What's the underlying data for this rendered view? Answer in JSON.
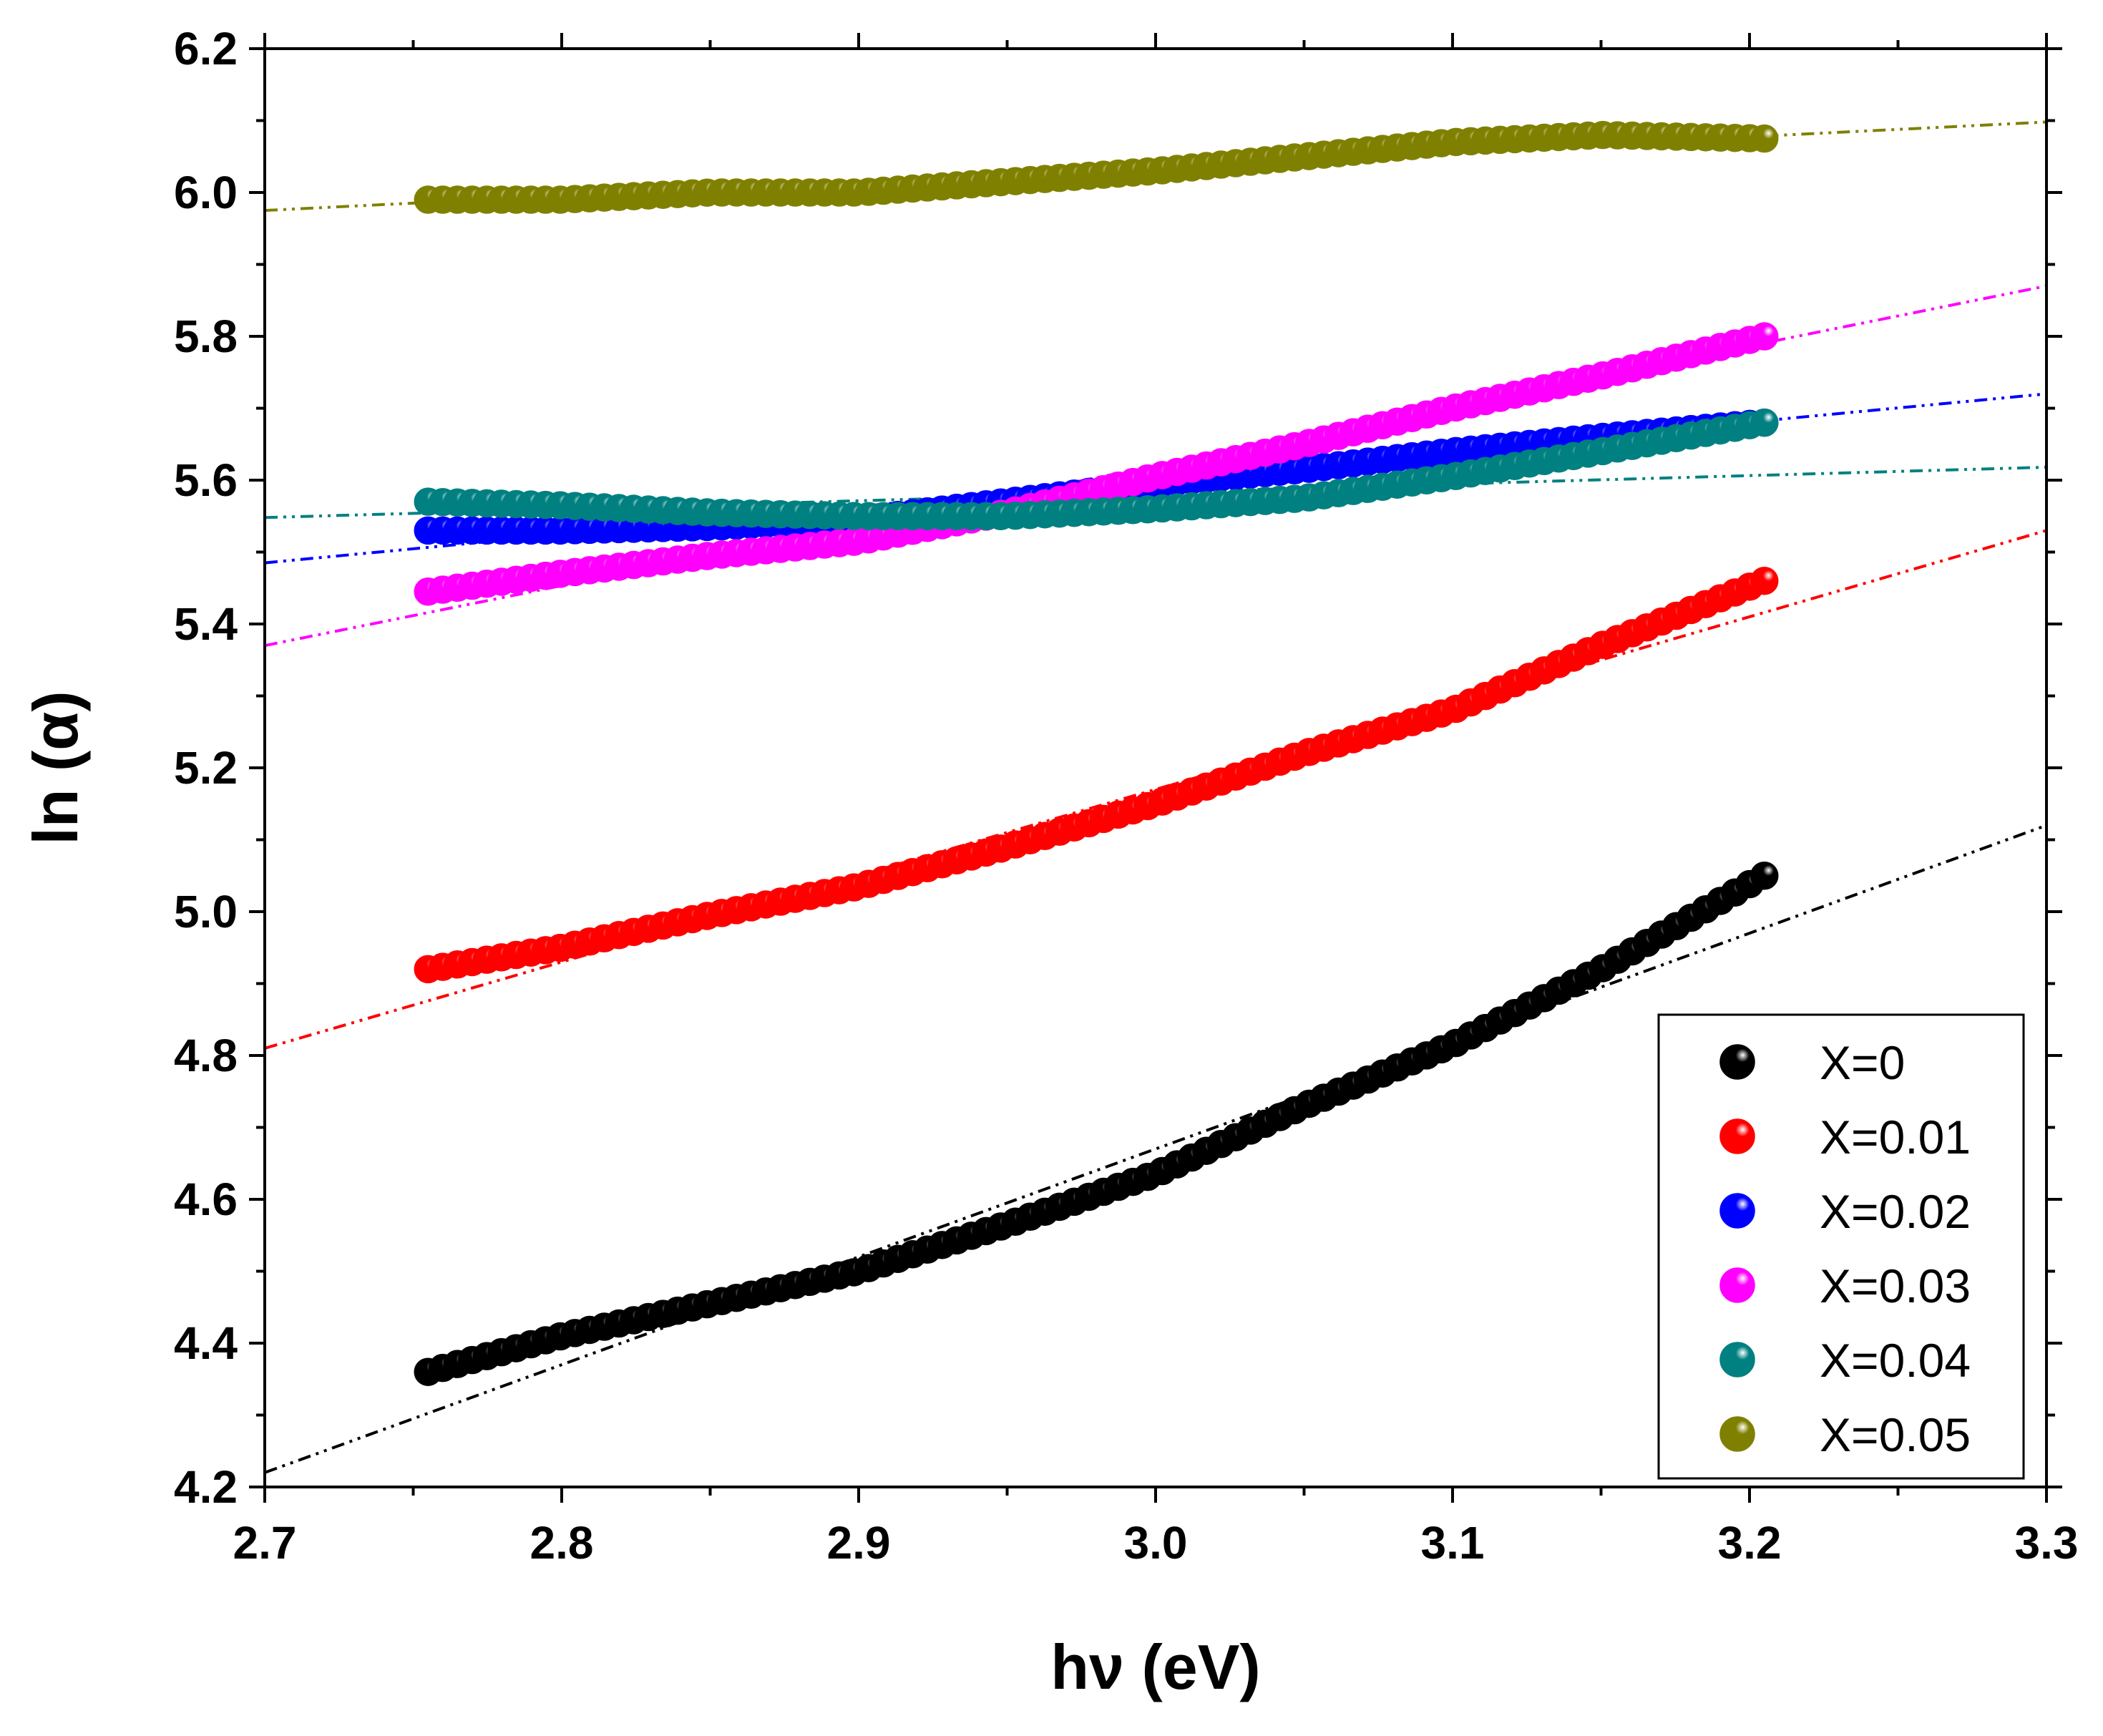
{
  "chart_data": {
    "type": "scatter",
    "title": "",
    "xlabel": "hν (eV)",
    "ylabel": "ln (α)",
    "xlim": [
      2.7,
      3.3
    ],
    "ylim": [
      4.2,
      6.2
    ],
    "xticks": [
      "2.7",
      "2.8",
      "2.9",
      "3.0",
      "3.1",
      "3.2",
      "3.3"
    ],
    "yticks": [
      "4.2",
      "4.4",
      "4.6",
      "4.8",
      "5.0",
      "5.2",
      "5.4",
      "5.6",
      "5.8",
      "6.0",
      "6.2"
    ],
    "grid": false,
    "legend_position": "bottom-right",
    "series": [
      {
        "name": "X=0",
        "color": "#000000",
        "x": [
          2.755,
          2.8,
          2.85,
          2.9,
          2.95,
          3.0,
          3.05,
          3.1,
          3.15,
          3.205
        ],
        "y": [
          4.36,
          4.41,
          4.455,
          4.5,
          4.565,
          4.635,
          4.73,
          4.815,
          4.92,
          5.05
        ],
        "fit": [
          [
            2.7,
            4.22
          ],
          [
            3.3,
            5.12
          ]
        ]
      },
      {
        "name": "X=0.01",
        "color": "#ff0000",
        "x": [
          2.755,
          2.8,
          2.85,
          2.9,
          2.95,
          3.0,
          3.05,
          3.1,
          3.15,
          3.205
        ],
        "y": [
          4.92,
          4.95,
          4.995,
          5.035,
          5.09,
          5.15,
          5.22,
          5.28,
          5.37,
          5.46
        ],
        "fit": [
          [
            2.7,
            4.81
          ],
          [
            3.3,
            5.53
          ]
        ]
      },
      {
        "name": "X=0.02",
        "color": "#0000ff",
        "x": [
          2.755,
          2.8,
          2.85,
          2.9,
          2.95,
          3.0,
          3.05,
          3.1,
          3.15,
          3.205
        ],
        "y": [
          5.53,
          5.53,
          5.535,
          5.545,
          5.57,
          5.595,
          5.615,
          5.64,
          5.66,
          5.68
        ],
        "fit": [
          [
            2.7,
            5.485
          ],
          [
            3.3,
            5.72
          ]
        ]
      },
      {
        "name": "X=0.03",
        "color": "#ff00ff",
        "x": [
          2.755,
          2.8,
          2.85,
          2.9,
          2.95,
          3.0,
          3.05,
          3.1,
          3.15,
          3.205
        ],
        "y": [
          5.445,
          5.47,
          5.495,
          5.515,
          5.555,
          5.605,
          5.65,
          5.7,
          5.745,
          5.8
        ],
        "fit": [
          [
            2.7,
            5.37
          ],
          [
            3.3,
            5.87
          ]
        ]
      },
      {
        "name": "X=0.04",
        "color": "#008080",
        "x": [
          2.755,
          2.8,
          2.85,
          2.9,
          2.95,
          3.0,
          3.05,
          3.1,
          3.15,
          3.205
        ],
        "y": [
          5.57,
          5.565,
          5.555,
          5.55,
          5.55,
          5.56,
          5.575,
          5.605,
          5.64,
          5.68
        ],
        "fit": [
          [
            2.7,
            5.548
          ],
          [
            3.3,
            5.618
          ]
        ]
      },
      {
        "name": "X=0.05",
        "color": "#808000",
        "x": [
          2.755,
          2.8,
          2.85,
          2.9,
          2.95,
          3.0,
          3.05,
          3.1,
          3.15,
          3.205
        ],
        "y": [
          5.99,
          5.99,
          6.0,
          6.0,
          6.015,
          6.03,
          6.05,
          6.07,
          6.08,
          6.075
        ],
        "fit": [
          [
            2.7,
            5.975
          ],
          [
            3.3,
            6.098
          ]
        ]
      }
    ]
  }
}
